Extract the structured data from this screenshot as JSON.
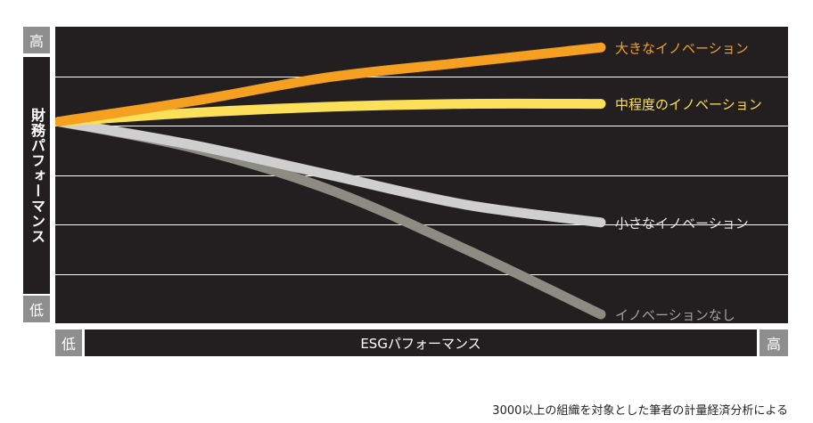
{
  "chart_data": {
    "type": "line",
    "title": "",
    "xlabel": "ESGパフォーマンス",
    "ylabel": "財務パフォーマンス",
    "x_low_label": "低",
    "x_high_label": "高",
    "y_low_label": "低",
    "y_high_label": "高",
    "xlim": [
      0,
      1
    ],
    "ylim": [
      0,
      1
    ],
    "grid": true,
    "x": [
      0,
      0.25,
      0.5,
      0.75,
      1
    ],
    "series": [
      {
        "name": "大きなイノベーション",
        "color": "#f5a020",
        "label_color": "#f5a020",
        "values": [
          0.68,
          0.75,
          0.83,
          0.88,
          0.93
        ]
      },
      {
        "name": "中程度のイノベーション",
        "color": "#fce05a",
        "label_color": "#fce05a",
        "values": [
          0.68,
          0.71,
          0.73,
          0.74,
          0.74
        ]
      },
      {
        "name": "小さなイノベーション",
        "color": "#cfcfcf",
        "label_color": "#e6e6e6",
        "values": [
          0.68,
          0.6,
          0.5,
          0.4,
          0.34
        ]
      },
      {
        "name": "イノベーションなし",
        "color": "#8d8c82",
        "label_color": "#a3a29b",
        "values": [
          0.68,
          0.59,
          0.45,
          0.25,
          0.03
        ]
      }
    ]
  },
  "source_note": "3000以上の組織を対象とした筆者の計量経済分析による"
}
